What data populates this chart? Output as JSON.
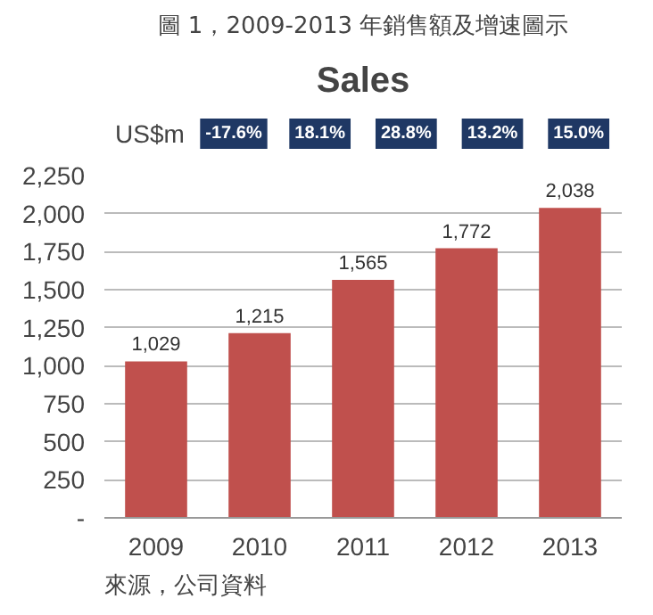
{
  "chart_data": {
    "type": "bar",
    "title": "圖 1，2009-2013 年銷售額及增速圖示",
    "subtitle": "Sales",
    "ylabel": "US$m",
    "categories": [
      "2009",
      "2010",
      "2011",
      "2012",
      "2013"
    ],
    "values": [
      1029,
      1215,
      1565,
      1772,
      2038
    ],
    "color": "#c0504d",
    "value_labels": [
      "1,029",
      "1,215",
      "1,565",
      "1,772",
      "2,038"
    ],
    "ylim": [
      0,
      2250
    ],
    "yticks": [
      {
        "value": 0,
        "label": "-"
      },
      {
        "value": 250,
        "label": "250"
      },
      {
        "value": 500,
        "label": "500"
      },
      {
        "value": 750,
        "label": "750"
      },
      {
        "value": 1000,
        "label": "1,000"
      },
      {
        "value": 1250,
        "label": "1,250"
      },
      {
        "value": 1500,
        "label": "1,500"
      },
      {
        "value": 1750,
        "label": "1,750"
      },
      {
        "value": 2000,
        "label": "2,000"
      },
      {
        "value": 2250,
        "label": "2,250"
      }
    ],
    "grid": "y",
    "annotations": [
      "-17.6%",
      "18.1%",
      "28.8%",
      "13.2%",
      "15.0%",
      "來源，公司資料"
    ]
  }
}
